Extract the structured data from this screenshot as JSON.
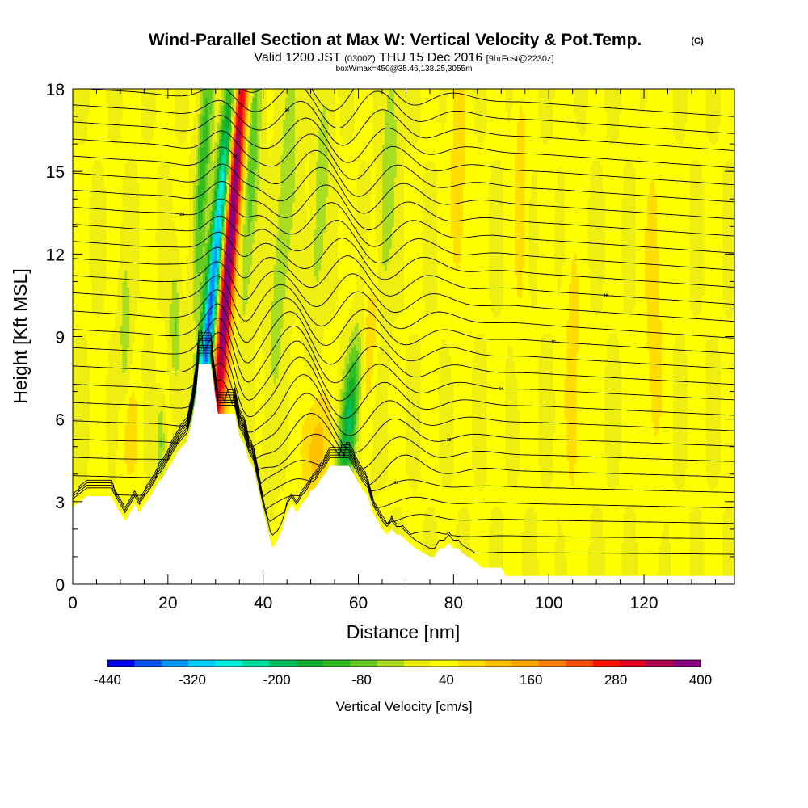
{
  "title": {
    "main": "Wind-Parallel Section at Max W: Vertical Velocity & Pot.Temp.",
    "copyright": "(C)",
    "valid_prefix": "Valid 1200 JST",
    "valid_utc": "(0300Z)",
    "valid_date": "THU 15 Dec 2016",
    "forecast": "[9hrFcst@2230z]",
    "boxinfo": "boxWmax=450@35.46,138.25,3055m"
  },
  "chart_data": {
    "type": "heatmap",
    "title": "Wind-Parallel Section at Max W: Vertical Velocity & Pot.Temp.",
    "xlabel": "Distance [nm]",
    "ylabel": "Height [Kft MSL]",
    "xlim": [
      0,
      139
    ],
    "ylim": [
      0,
      18
    ],
    "x_ticks": [
      0,
      20,
      40,
      60,
      80,
      100,
      120
    ],
    "x_tick_labels": [
      "0",
      "20",
      "40",
      "60",
      "80",
      "100",
      "120"
    ],
    "y_ticks": [
      0,
      3,
      6,
      9,
      12,
      15,
      18
    ],
    "y_tick_labels": [
      "0",
      "3",
      "6",
      "9",
      "12",
      "15",
      "18"
    ],
    "colorbar": {
      "title": "Vertical Velocity [cm/s]",
      "min": -440,
      "max": 400,
      "step": 40,
      "tick_values": [
        -440,
        -320,
        -200,
        -80,
        40,
        160,
        280,
        400
      ],
      "tick_labels": [
        "-440",
        "-320",
        "-200",
        "-80",
        "40",
        "160",
        "280",
        "400"
      ],
      "colors": [
        "#0000ee",
        "#0a55f5",
        "#0099ff",
        "#00ccff",
        "#00eedd",
        "#00dda0",
        "#00c060",
        "#10b030",
        "#33bb22",
        "#66cc22",
        "#aadd22",
        "#eeee11",
        "#ffff00",
        "#ffdd00",
        "#ffc000",
        "#ffa500",
        "#ff8000",
        "#ff5000",
        "#ff1500",
        "#e00020",
        "#b00050",
        "#8a0080"
      ]
    },
    "background_value": 20,
    "terrain_top_kft": [
      [
        0,
        2.8
      ],
      [
        3,
        3.2
      ],
      [
        8,
        3.2
      ],
      [
        9,
        2.9
      ],
      [
        10,
        2.6
      ],
      [
        11,
        2.3
      ],
      [
        12,
        2.6
      ],
      [
        13,
        2.9
      ],
      [
        14,
        2.6
      ],
      [
        15,
        2.9
      ],
      [
        16,
        3.1
      ],
      [
        17,
        3.4
      ],
      [
        18,
        3.7
      ],
      [
        19,
        3.9
      ],
      [
        20,
        4.2
      ],
      [
        21,
        4.5
      ],
      [
        22,
        4.8
      ],
      [
        24,
        5.2
      ],
      [
        25,
        5.9
      ],
      [
        26,
        7.0
      ],
      [
        26.5,
        8.0
      ],
      [
        29,
        8.0
      ],
      [
        29.8,
        7.0
      ],
      [
        30.5,
        6.2
      ],
      [
        34,
        6.2
      ],
      [
        35,
        5.4
      ],
      [
        36,
        5.1
      ],
      [
        37,
        4.5
      ],
      [
        38,
        4.2
      ],
      [
        39,
        3.4
      ],
      [
        40,
        2.6
      ],
      [
        41,
        2.0
      ],
      [
        41.5,
        1.6
      ],
      [
        42,
        1.3
      ],
      [
        43,
        1.6
      ],
      [
        44,
        2.0
      ],
      [
        45,
        2.6
      ],
      [
        46,
        2.9
      ],
      [
        47,
        2.6
      ],
      [
        48,
        2.9
      ],
      [
        49,
        3.1
      ],
      [
        50,
        3.4
      ],
      [
        51,
        3.5
      ],
      [
        52,
        3.8
      ],
      [
        53,
        4.0
      ],
      [
        54,
        4.3
      ],
      [
        55,
        4.3
      ],
      [
        58,
        4.3
      ],
      [
        59,
        4.0
      ],
      [
        60,
        3.7
      ],
      [
        61,
        3.4
      ],
      [
        62,
        3.2
      ],
      [
        63,
        2.6
      ],
      [
        64,
        2.3
      ],
      [
        65,
        2.0
      ],
      [
        66,
        1.8
      ],
      [
        67,
        2.0
      ],
      [
        68,
        1.8
      ],
      [
        69,
        1.8
      ],
      [
        70,
        1.6
      ],
      [
        72,
        1.3
      ],
      [
        74,
        1.1
      ],
      [
        75,
        1.0
      ],
      [
        76,
        1.0
      ],
      [
        77,
        1.3
      ],
      [
        78,
        1.3
      ],
      [
        79,
        1.5
      ],
      [
        80,
        1.3
      ],
      [
        81,
        1.3
      ],
      [
        82,
        1.1
      ],
      [
        83,
        1.0
      ],
      [
        84,
        0.9
      ],
      [
        86,
        0.6
      ],
      [
        90,
        0.6
      ],
      [
        91,
        0.3
      ],
      [
        139,
        0.3
      ]
    ],
    "w_features": [
      {
        "x": 29,
        "y": 10,
        "sx": 1.1,
        "sy": 6.5,
        "tilt": 0.55,
        "value": -420
      },
      {
        "x": 33,
        "y": 12.5,
        "sx": 1.2,
        "sy": 7.0,
        "tilt": 0.45,
        "value": 420
      },
      {
        "x": 27.5,
        "y": 15.5,
        "sx": 1.0,
        "sy": 3.5,
        "tilt": 0.3,
        "value": -140
      },
      {
        "x": 37.5,
        "y": 15.5,
        "sx": 1.2,
        "sy": 4.0,
        "tilt": 0.3,
        "value": -120
      },
      {
        "x": 44.5,
        "y": 13.5,
        "sx": 1.3,
        "sy": 5.0,
        "tilt": 0.4,
        "value": -80
      },
      {
        "x": 52,
        "y": 14,
        "sx": 1.1,
        "sy": 3.5,
        "tilt": 0.3,
        "value": -70
      },
      {
        "x": 58.5,
        "y": 6.5,
        "sx": 1.4,
        "sy": 2.6,
        "tilt": 0.6,
        "value": -220
      },
      {
        "x": 66,
        "y": 14,
        "sx": 1.2,
        "sy": 4.0,
        "tilt": 0.3,
        "value": -80
      },
      {
        "x": 61.5,
        "y": 9.0,
        "sx": 2.0,
        "sy": 2.0,
        "tilt": 0.4,
        "value": 110
      },
      {
        "x": 51,
        "y": 5.0,
        "sx": 2.0,
        "sy": 1.5,
        "tilt": 0.2,
        "value": 100
      },
      {
        "x": 21.5,
        "y": 9.5,
        "sx": 0.8,
        "sy": 1.5,
        "tilt": 0.0,
        "value": -80
      },
      {
        "x": 11,
        "y": 9.0,
        "sx": 0.8,
        "sy": 2.0,
        "tilt": 0.0,
        "value": -70
      },
      {
        "x": 18.5,
        "y": 5.2,
        "sx": 0.6,
        "sy": 1.0,
        "tilt": 0.0,
        "value": -90
      },
      {
        "x": 81,
        "y": 15,
        "sx": 1.2,
        "sy": 3.5,
        "tilt": 0.0,
        "value": 70
      },
      {
        "x": 94,
        "y": 14,
        "sx": 1.0,
        "sy": 3.5,
        "tilt": 0.0,
        "value": 60
      },
      {
        "x": 105,
        "y": 7.5,
        "sx": 1.2,
        "sy": 4.0,
        "tilt": 0.0,
        "value": 60
      },
      {
        "x": 12,
        "y": 5.5,
        "sx": 1.4,
        "sy": 1.4,
        "tilt": 0.0,
        "value": 60
      },
      {
        "x": 122,
        "y": 10,
        "sx": 1.4,
        "sy": 4.5,
        "tilt": 0.0,
        "value": 60
      }
    ],
    "theta_contour_labels": [
      "8",
      "10",
      "12",
      "14",
      "16",
      "18",
      "20",
      "22",
      "24"
    ]
  }
}
